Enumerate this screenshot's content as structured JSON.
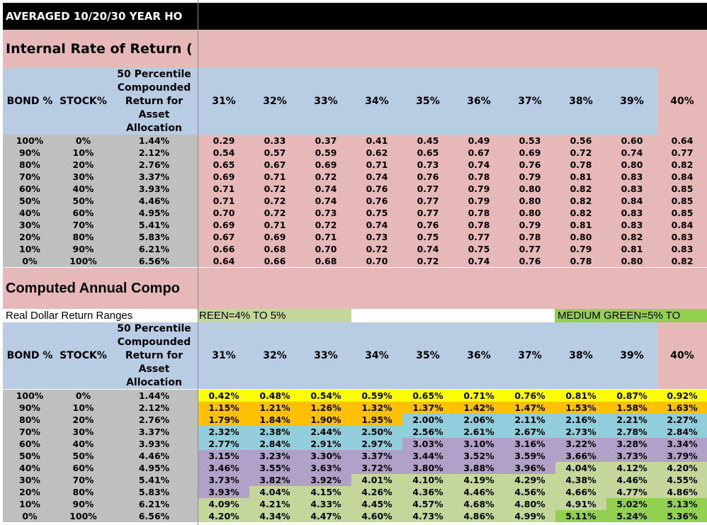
{
  "title": "AVERAGED 10/20/30 YEAR HO",
  "irr_section": {
    "title": "Internal Rate of Return ("
  },
  "annual_section": {
    "title": "Computed Annual Compo"
  },
  "legend": {
    "label": "Real Dollar Return Ranges",
    "light_green": "REEN=4% TO 5%",
    "medium_green": "MEDIUM GREEN=5% TO"
  },
  "headers": {
    "bond": "BOND %",
    "stock": "STOCK%",
    "ret": "50 Percentile Compounded Return for Asset Allocation",
    "cols": [
      "31%",
      "32%",
      "33%",
      "34%",
      "35%",
      "36%",
      "37%",
      "38%",
      "39%",
      "40%"
    ]
  },
  "allocations": [
    [
      "100%",
      "0%",
      "1.44%"
    ],
    [
      "90%",
      "10%",
      "2.12%"
    ],
    [
      "80%",
      "20%",
      "2.76%"
    ],
    [
      "70%",
      "30%",
      "3.37%"
    ],
    [
      "60%",
      "40%",
      "3.93%"
    ],
    [
      "50%",
      "50%",
      "4.46%"
    ],
    [
      "40%",
      "60%",
      "4.95%"
    ],
    [
      "30%",
      "70%",
      "5.41%"
    ],
    [
      "20%",
      "80%",
      "5.83%"
    ],
    [
      "10%",
      "90%",
      "6.21%"
    ],
    [
      "0%",
      "100%",
      "6.56%"
    ]
  ],
  "irr": [
    [
      "0.29",
      "0.33",
      "0.37",
      "0.41",
      "0.45",
      "0.49",
      "0.53",
      "0.56",
      "0.60",
      "0.64"
    ],
    [
      "0.54",
      "0.57",
      "0.59",
      "0.62",
      "0.65",
      "0.67",
      "0.69",
      "0.72",
      "0.74",
      "0.77"
    ],
    [
      "0.65",
      "0.67",
      "0.69",
      "0.71",
      "0.73",
      "0.74",
      "0.76",
      "0.78",
      "0.80",
      "0.82"
    ],
    [
      "0.69",
      "0.71",
      "0.72",
      "0.74",
      "0.76",
      "0.78",
      "0.79",
      "0.81",
      "0.83",
      "0.84"
    ],
    [
      "0.71",
      "0.72",
      "0.74",
      "0.76",
      "0.77",
      "0.79",
      "0.80",
      "0.82",
      "0.83",
      "0.85"
    ],
    [
      "0.71",
      "0.72",
      "0.74",
      "0.76",
      "0.77",
      "0.79",
      "0.80",
      "0.82",
      "0.84",
      "0.85"
    ],
    [
      "0.70",
      "0.72",
      "0.73",
      "0.75",
      "0.77",
      "0.78",
      "0.80",
      "0.82",
      "0.83",
      "0.85"
    ],
    [
      "0.69",
      "0.71",
      "0.72",
      "0.74",
      "0.76",
      "0.78",
      "0.79",
      "0.81",
      "0.83",
      "0.84"
    ],
    [
      "0.67",
      "0.69",
      "0.71",
      "0.73",
      "0.75",
      "0.77",
      "0.78",
      "0.80",
      "0.82",
      "0.83"
    ],
    [
      "0.66",
      "0.68",
      "0.70",
      "0.72",
      "0.74",
      "0.75",
      "0.77",
      "0.79",
      "0.81",
      "0.83"
    ],
    [
      "0.64",
      "0.66",
      "0.68",
      "0.70",
      "0.72",
      "0.74",
      "0.76",
      "0.78",
      "0.80",
      "0.82"
    ]
  ],
  "annual": [
    [
      "0.42%",
      "0.48%",
      "0.54%",
      "0.59%",
      "0.65%",
      "0.71%",
      "0.76%",
      "0.81%",
      "0.87%",
      "0.92%"
    ],
    [
      "1.15%",
      "1.21%",
      "1.26%",
      "1.32%",
      "1.37%",
      "1.42%",
      "1.47%",
      "1.53%",
      "1.58%",
      "1.63%"
    ],
    [
      "1.79%",
      "1.84%",
      "1.90%",
      "1.95%",
      "2.00%",
      "2.06%",
      "2.11%",
      "2.16%",
      "2.21%",
      "2.27%"
    ],
    [
      "2.32%",
      "2.38%",
      "2.44%",
      "2.50%",
      "2.56%",
      "2.61%",
      "2.67%",
      "2.73%",
      "2.78%",
      "2.84%"
    ],
    [
      "2.77%",
      "2.84%",
      "2.91%",
      "2.97%",
      "3.03%",
      "3.10%",
      "3.16%",
      "3.22%",
      "3.28%",
      "3.34%"
    ],
    [
      "3.15%",
      "3.23%",
      "3.30%",
      "3.37%",
      "3.44%",
      "3.52%",
      "3.59%",
      "3.66%",
      "3.73%",
      "3.79%"
    ],
    [
      "3.46%",
      "3.55%",
      "3.63%",
      "3.72%",
      "3.80%",
      "3.88%",
      "3.96%",
      "4.04%",
      "4.12%",
      "4.20%"
    ],
    [
      "3.73%",
      "3.82%",
      "3.92%",
      "4.01%",
      "4.10%",
      "4.19%",
      "4.29%",
      "4.38%",
      "4.46%",
      "4.55%"
    ],
    [
      "3.93%",
      "4.04%",
      "4.15%",
      "4.26%",
      "4.36%",
      "4.46%",
      "4.56%",
      "4.66%",
      "4.77%",
      "4.86%"
    ],
    [
      "4.09%",
      "4.21%",
      "4.33%",
      "4.45%",
      "4.57%",
      "4.68%",
      "4.80%",
      "4.91%",
      "5.02%",
      "5.13%"
    ],
    [
      "4.20%",
      "4.34%",
      "4.47%",
      "4.60%",
      "4.73%",
      "4.86%",
      "4.99%",
      "5.11%",
      "5.24%",
      "5.36%"
    ]
  ],
  "range_colors": {
    "below_1": "#ffff00",
    "1_to_2": "#ffc000",
    "2_to_3": "#92cddc",
    "3_to_4": "#b1a0c7",
    "4_to_5": "#c4d79b",
    "5_plus": "#92d050"
  }
}
